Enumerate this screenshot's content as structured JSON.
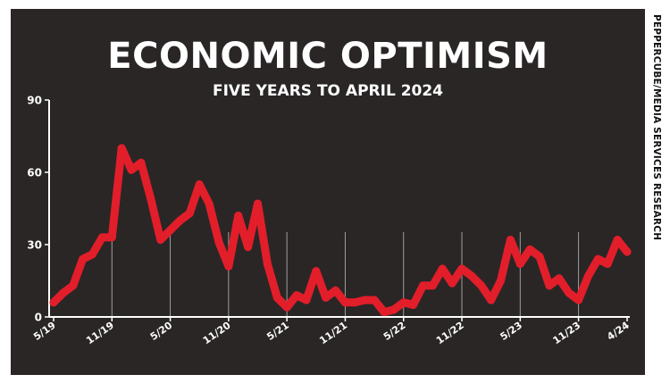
{
  "colors": {
    "background": "#2a2626",
    "line": "#e21e2a",
    "text": "#ffffff",
    "axis": "#ffffff"
  },
  "credit": "PEPPERCUBE/MEDIA SERVICES RESEARCH",
  "chart_data": {
    "type": "line",
    "title": "ECONOMIC OPTIMISM",
    "subtitle": "FIVE YEARS TO APRIL 2024",
    "xlabel": "",
    "ylabel": "",
    "ylim": [
      0,
      90
    ],
    "yticks": [
      0,
      30,
      60,
      90
    ],
    "grid": false,
    "xtick_labels": [
      "5/19",
      "11/19",
      "5/20",
      "11/20",
      "5/21",
      "11/21",
      "5/22",
      "11/22",
      "5/23",
      "11/23",
      "4/24"
    ],
    "xtick_index": [
      0,
      6,
      12,
      18,
      24,
      30,
      36,
      42,
      48,
      54,
      59
    ],
    "series": [
      {
        "values": [
          6,
          10,
          13,
          24,
          26,
          33,
          33,
          70,
          61,
          64,
          49,
          32,
          36,
          40,
          43,
          55,
          47,
          31,
          21,
          42,
          29,
          47,
          22,
          8,
          4,
          9,
          7,
          19,
          8,
          11,
          6,
          6,
          7,
          7,
          2,
          3,
          6,
          5,
          13,
          13,
          20,
          14,
          20,
          17,
          13,
          7,
          15,
          32,
          22,
          28,
          25,
          13,
          16,
          10,
          7,
          17,
          24,
          22,
          32,
          27
        ]
      }
    ]
  }
}
